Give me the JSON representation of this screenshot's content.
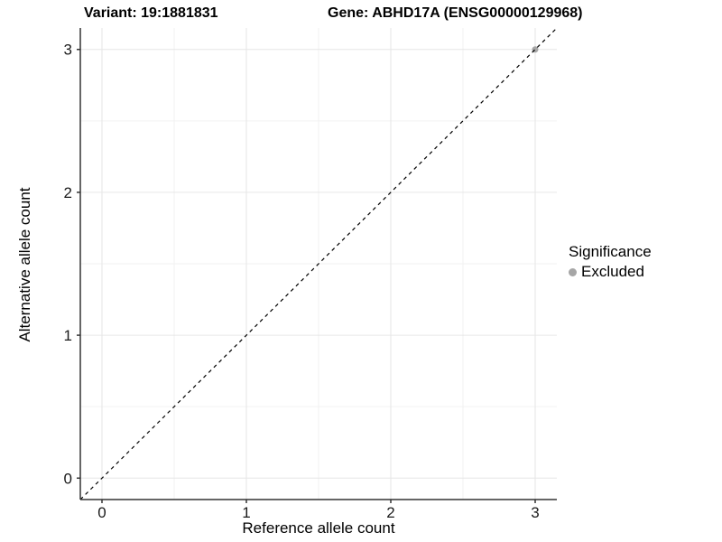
{
  "title": {
    "left": "Variant: 19:1881831",
    "right": "Gene: ABHD17A (ENSG00000129968)"
  },
  "legend": {
    "title": "Significance",
    "items": [
      {
        "label": "Excluded",
        "color": "#a6a6a6",
        "marker": "dot-icon"
      }
    ]
  },
  "colors": {
    "background": "#ffffff",
    "grid_major": "#e6e6e6",
    "grid_minor": "#f2f2f2",
    "axis_line": "#333333",
    "tick_text": "#1a1a1a",
    "identity_line": "#000000",
    "excluded_point": "#a6a6a6"
  },
  "chart_data": {
    "type": "scatter",
    "title": "Variant: 19:1881831    Gene: ABHD17A (ENSG00000129968)",
    "xlabel": "Reference allele count",
    "ylabel": "Alternative allele count",
    "xlim": [
      -0.15,
      3.15
    ],
    "ylim": [
      -0.15,
      3.15
    ],
    "x_ticks": [
      0,
      1,
      2,
      3
    ],
    "y_ticks": [
      0,
      1,
      2,
      3
    ],
    "x_minor_ticks": [
      0.5,
      1.5,
      2.5
    ],
    "y_minor_ticks": [
      0.5,
      1.5,
      2.5
    ],
    "grid": true,
    "legend_position": "right",
    "series": [
      {
        "name": "Excluded",
        "color": "#a6a6a6",
        "points": [
          {
            "x": 3,
            "y": 3
          }
        ]
      }
    ],
    "reference_line": {
      "kind": "identity y=x",
      "from": [
        -0.15,
        -0.15
      ],
      "to": [
        3.15,
        3.15
      ],
      "style": "dashed",
      "color": "#000000"
    }
  }
}
